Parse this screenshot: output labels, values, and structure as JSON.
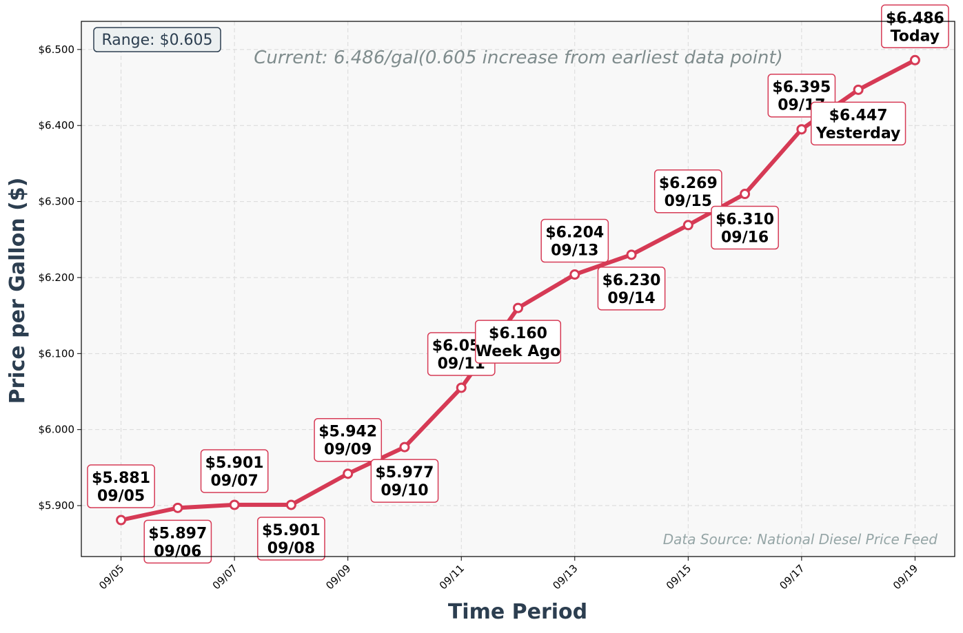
{
  "colors": {
    "line": "#d63a55",
    "marker_fill": "#ffffff",
    "plot_bg": "#f8f8f8",
    "axis_title": "#2c3e50",
    "subtitle": "#7f8c8d",
    "source": "#95a5a6",
    "range_bg": "#ecf0f1"
  },
  "chart_data": {
    "type": "line",
    "title": "",
    "subtitle": "Current: 6.486/gal(0.605 increase from earliest data point)",
    "xlabel": "Time Period",
    "ylabel": "Price per Gallon ($)",
    "range_label": "Range: $0.605",
    "source": "Data Source: National Diesel Price Feed",
    "ylim": [
      5.833,
      6.537
    ],
    "grid": true,
    "x_tick_labels": [
      "09/05",
      "09/07",
      "09/09",
      "09/11",
      "09/13",
      "09/15",
      "09/17",
      "09/19"
    ],
    "y_tick_labels": [
      "$5.900",
      "$6.000",
      "$6.100",
      "$6.200",
      "$6.300",
      "$6.400",
      "$6.500"
    ],
    "y_ticks": [
      5.9,
      6.0,
      6.1,
      6.2,
      6.3,
      6.4,
      6.5
    ],
    "series": [
      {
        "x": [
          "09/05",
          "09/06",
          "09/07",
          "09/08",
          "09/09",
          "09/10",
          "09/11",
          "09/12",
          "09/13",
          "09/14",
          "09/15",
          "09/16",
          "09/17",
          "09/18",
          "09/19"
        ],
        "values": [
          5.881,
          5.897,
          5.901,
          5.901,
          5.942,
          5.977,
          6.055,
          6.16,
          6.204,
          6.23,
          6.269,
          6.31,
          6.395,
          6.447,
          6.486
        ]
      }
    ],
    "annotations": [
      {
        "price": "$5.881",
        "label": "09/05",
        "placement": "above"
      },
      {
        "price": "$5.897",
        "label": "09/06",
        "placement": "below"
      },
      {
        "price": "$5.901",
        "label": "09/07",
        "placement": "above"
      },
      {
        "price": "$5.901",
        "label": "09/08",
        "placement": "below"
      },
      {
        "price": "$5.942",
        "label": "09/09",
        "placement": "above"
      },
      {
        "price": "$5.977",
        "label": "09/10",
        "placement": "below"
      },
      {
        "price": "$6.055",
        "label": "09/11",
        "placement": "above"
      },
      {
        "price": "$6.160",
        "label": "Week Ago",
        "placement": "below"
      },
      {
        "price": "$6.204",
        "label": "09/13",
        "placement": "above"
      },
      {
        "price": "$6.230",
        "label": "09/14",
        "placement": "below"
      },
      {
        "price": "$6.269",
        "label": "09/15",
        "placement": "above"
      },
      {
        "price": "$6.310",
        "label": "09/16",
        "placement": "below"
      },
      {
        "price": "$6.395",
        "label": "09/17",
        "placement": "above"
      },
      {
        "price": "$6.447",
        "label": "Yesterday",
        "placement": "below"
      },
      {
        "price": "$6.486",
        "label": "Today",
        "placement": "above"
      }
    ]
  }
}
